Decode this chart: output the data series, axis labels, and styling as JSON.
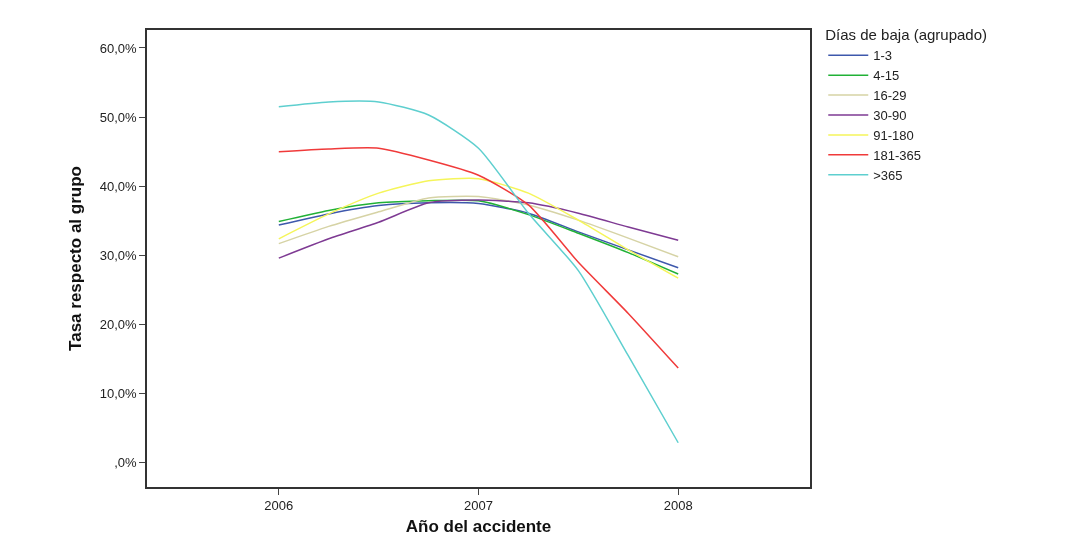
{
  "chart_data": {
    "type": "line",
    "xlabel": "Año del accidente",
    "ylabel": "Tasa respecto al grupo",
    "legend_title": "Días de baja (agrupado)",
    "x": [
      2006,
      2006.25,
      2006.5,
      2006.75,
      2007,
      2007.25,
      2007.5,
      2007.75,
      2008
    ],
    "xlim": [
      2005.34,
      2008.66
    ],
    "xticks": [
      2006,
      2007,
      2008
    ],
    "ylim": [
      -3.5,
      62.6
    ],
    "yticks": [
      {
        "value": 0,
        "label": ",0%"
      },
      {
        "value": 10,
        "label": "10,0%"
      },
      {
        "value": 20,
        "label": "20,0%"
      },
      {
        "value": 30,
        "label": "30,0%"
      },
      {
        "value": 40,
        "label": "40,0%"
      },
      {
        "value": 50,
        "label": "50,0%"
      },
      {
        "value": 60,
        "label": "60,0%"
      }
    ],
    "grid": false,
    "legend": "right",
    "marker": "none",
    "line_style": "solid",
    "series": [
      {
        "name": "1-3",
        "color": "#3e58ac",
        "values": [
          34.4,
          36.0,
          37.2,
          37.6,
          37.5,
          36.1,
          33.4,
          30.8,
          28.2
        ]
      },
      {
        "name": "4-15",
        "color": "#21b136",
        "values": [
          34.9,
          36.5,
          37.6,
          37.9,
          37.9,
          35.9,
          33.2,
          30.4,
          27.3
        ]
      },
      {
        "name": "16-29",
        "color": "#d6d3a5",
        "values": [
          31.7,
          34.2,
          36.3,
          38.3,
          38.5,
          37.3,
          35.1,
          32.5,
          29.8
        ]
      },
      {
        "name": "30-90",
        "color": "#7e3a93",
        "values": [
          29.6,
          32.4,
          34.8,
          37.6,
          38.0,
          37.6,
          36.1,
          34.1,
          32.2
        ]
      },
      {
        "name": "91-180",
        "color": "#f5f55a",
        "values": [
          32.4,
          36.0,
          39.0,
          40.8,
          41.1,
          39.0,
          35.1,
          30.8,
          26.7
        ]
      },
      {
        "name": "181-365",
        "color": "#f03a3a",
        "values": [
          45.0,
          45.4,
          45.5,
          43.8,
          41.6,
          37.3,
          29.0,
          21.6,
          13.7
        ]
      },
      {
        "name": ">365",
        "color": "#5ecfcf",
        "values": [
          51.5,
          52.2,
          52.2,
          50.3,
          45.5,
          36.1,
          27.8,
          15.5,
          2.9
        ]
      }
    ]
  }
}
